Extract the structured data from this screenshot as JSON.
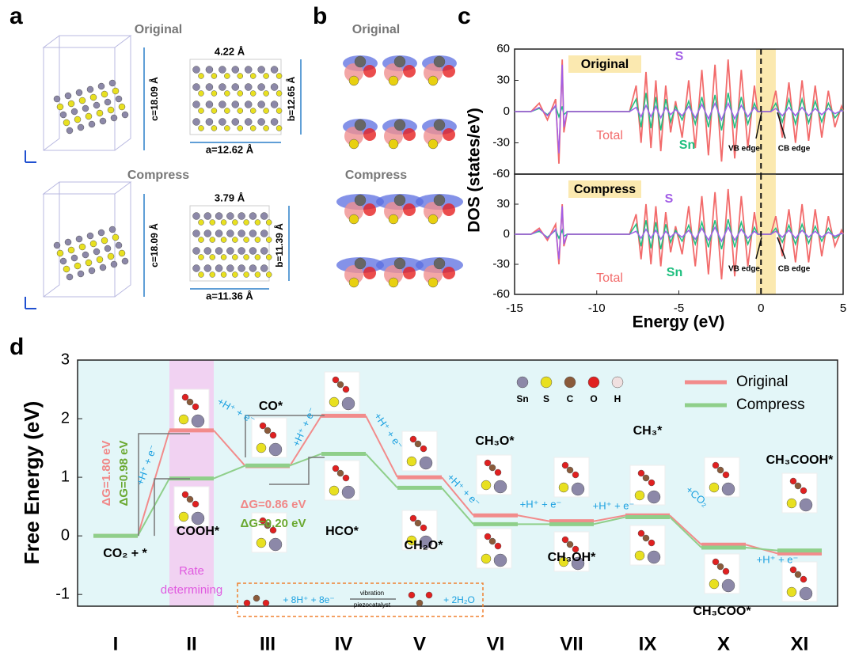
{
  "figure": {
    "labels": [
      "a",
      "b",
      "c",
      "d"
    ],
    "a": {
      "original": "Original",
      "compress": "Compress",
      "original_dims": [
        "c=18.09 Å",
        "4.22 Å",
        "b=12.65 Å",
        "a=12.62 Å"
      ],
      "compress_dims": [
        "c=18.09 Å",
        "3.79 Å",
        "b=11.39 Å",
        "a=11.36 Å"
      ]
    },
    "b": {
      "original": "Original",
      "compress": "Compress"
    }
  },
  "chart_data": [
    {
      "type": "line",
      "title": "Original",
      "ylabel": "DOS (states/eV)",
      "x": [
        -15,
        -14,
        -13.5,
        -13,
        -12.5,
        -12.3,
        -12.1,
        -12,
        -11.8,
        -8,
        -7.6,
        -7.3,
        -7,
        -6.7,
        -6.4,
        -6.1,
        -5.8,
        -5.5,
        -5.2,
        -4.8,
        -4.4,
        -4,
        -3.6,
        -3.2,
        -2.8,
        -2.4,
        -2,
        -1.6,
        -1.2,
        -0.8,
        -0.4,
        -0.2,
        0.6,
        0.9,
        1.3,
        1.7,
        2.1,
        2.5,
        2.9,
        3.3,
        3.7,
        4.1,
        4.5,
        4.9,
        5
      ],
      "series": [
        {
          "name": "Total",
          "color": "#f26b6b",
          "values": [
            0,
            0,
            8,
            -8,
            12,
            -50,
            50,
            -20,
            0,
            0,
            25,
            -30,
            38,
            -35,
            30,
            -38,
            25,
            -20,
            10,
            -25,
            30,
            -35,
            40,
            -42,
            45,
            -48,
            50,
            -45,
            40,
            -35,
            25,
            0,
            0,
            20,
            -25,
            28,
            -30,
            30,
            -28,
            25,
            -25,
            20,
            -15,
            5,
            0
          ]
        },
        {
          "name": "Sn",
          "color": "#1fbf7f",
          "values": [
            0,
            0,
            3,
            -3,
            5,
            -5,
            5,
            -3,
            0,
            0,
            12,
            -15,
            18,
            -16,
            14,
            -18,
            12,
            -10,
            5,
            -8,
            10,
            -12,
            14,
            -15,
            16,
            -18,
            18,
            -16,
            14,
            -12,
            8,
            0,
            0,
            8,
            -10,
            12,
            -12,
            12,
            -11,
            10,
            -10,
            8,
            -6,
            2,
            0
          ]
        },
        {
          "name": "S",
          "color": "#a25ee6",
          "values": [
            0,
            0,
            4,
            -4,
            6,
            -40,
            45,
            -15,
            0,
            0,
            4,
            -5,
            6,
            -5,
            5,
            -6,
            4,
            -3,
            2,
            -4,
            5,
            -6,
            7,
            -7,
            8,
            -8,
            8,
            -7,
            6,
            -5,
            4,
            0,
            0,
            3,
            -4,
            4,
            -4,
            4,
            -4,
            3,
            -3,
            3,
            -2,
            1,
            0
          ]
        }
      ],
      "xlim": [
        -15,
        5
      ],
      "ylim": [
        -60,
        60
      ],
      "yticks": [
        60,
        30,
        0,
        -30,
        -60
      ],
      "highlight": [
        -0.3,
        0.9
      ],
      "vline": 0,
      "annotations": [
        "VB edge",
        "CB edge"
      ]
    },
    {
      "type": "line",
      "title": "Compress",
      "xlabel": "Energy (eV)",
      "x": [
        -15,
        -14,
        -13.5,
        -13,
        -12.5,
        -12.3,
        -12.1,
        -12,
        -11.8,
        -8,
        -7.6,
        -7.3,
        -7,
        -6.7,
        -6.4,
        -6.1,
        -5.8,
        -5.5,
        -5.2,
        -4.8,
        -4.4,
        -4,
        -3.6,
        -3.2,
        -2.8,
        -2.4,
        -2,
        -1.6,
        -1.2,
        -0.8,
        -0.4,
        -0.2,
        0.6,
        0.9,
        1.3,
        1.7,
        2.1,
        2.5,
        2.9,
        3.3,
        3.7,
        4.1,
        4.5,
        4.9,
        5
      ],
      "series": [
        {
          "name": "Total",
          "color": "#f26b6b",
          "values": [
            0,
            0,
            6,
            -6,
            10,
            -30,
            30,
            -12,
            0,
            0,
            20,
            -25,
            30,
            -30,
            28,
            -32,
            22,
            -18,
            8,
            -20,
            28,
            -32,
            38,
            -40,
            42,
            -45,
            45,
            -42,
            38,
            -32,
            22,
            0,
            0,
            18,
            -22,
            25,
            -28,
            30,
            -28,
            25,
            -22,
            18,
            -12,
            4,
            0
          ]
        },
        {
          "name": "Sn",
          "color": "#1fbf7f",
          "values": [
            0,
            0,
            3,
            -3,
            4,
            -4,
            4,
            -2,
            0,
            0,
            10,
            -12,
            14,
            -14,
            12,
            -15,
            10,
            -8,
            4,
            -7,
            9,
            -10,
            12,
            -13,
            14,
            -15,
            15,
            -13,
            12,
            -10,
            7,
            0,
            0,
            6,
            -8,
            9,
            -10,
            10,
            -9,
            8,
            -7,
            6,
            -4,
            1,
            0
          ]
        },
        {
          "name": "S",
          "color": "#a25ee6",
          "values": [
            0,
            0,
            4,
            -4,
            5,
            -25,
            28,
            -10,
            0,
            0,
            3,
            -4,
            5,
            -4,
            4,
            -5,
            3,
            -3,
            2,
            -3,
            4,
            -5,
            6,
            -6,
            7,
            -7,
            7,
            -6,
            5,
            -4,
            3,
            0,
            0,
            3,
            -3,
            4,
            -4,
            4,
            -3,
            3,
            -3,
            2,
            -2,
            1,
            0
          ]
        }
      ],
      "xlim": [
        -15,
        5
      ],
      "xticks": [
        -15,
        -10,
        -5,
        0,
        5
      ],
      "ylim": [
        -60,
        60
      ],
      "yticks": [
        30,
        0,
        -30,
        -60
      ],
      "highlight": [
        -0.3,
        0.9
      ],
      "vline": 0,
      "annotations": [
        "VB edge",
        "CB edge"
      ]
    },
    {
      "type": "step",
      "ylabel": "Free Energy (eV)",
      "categories": [
        "I",
        "II",
        "III",
        "IV",
        "V",
        "VI",
        "VII",
        "IX",
        "X",
        "XI"
      ],
      "series": [
        {
          "name": "Original",
          "color": "#f28b8b",
          "values": [
            0,
            1.8,
            1.19,
            2.05,
            1.0,
            0.35,
            0.25,
            0.35,
            -0.15,
            -0.3
          ]
        },
        {
          "name": "Compress",
          "color": "#8fcf8a",
          "values": [
            0,
            0.98,
            1.2,
            1.4,
            0.82,
            0.2,
            0.2,
            0.32,
            -0.2,
            -0.25
          ]
        }
      ],
      "ylim": [
        -1.2,
        3
      ],
      "yticks": [
        -1,
        0,
        1,
        2,
        3
      ],
      "species": [
        "CO₂ + *",
        "COOH*",
        "CO*",
        "HCO*",
        "CH₂O*",
        "CH₃O*",
        "CH₃OH*",
        "CH₃*",
        "CH₃COO*",
        "CH₃COOH*"
      ],
      "delta_g": [
        "ΔG=1.80 eV",
        "ΔG=0.98 eV",
        "ΔG=0.86 eV",
        "ΔG=0.20 eV"
      ],
      "steps": [
        "+H⁺ + e⁻",
        "+H⁺ + e⁻",
        "+H⁺ + e⁻",
        "+H⁺ + e⁻",
        "+H⁺ + e⁻",
        "+H⁺ + e⁻",
        "+H⁺ + e⁻",
        "+CO₂",
        "+H⁺ + e⁻"
      ],
      "rate": [
        "Rate",
        "determining"
      ],
      "reaction": [
        "+ 8H⁺ + 8e⁻",
        "vibration",
        "piezocatalyst",
        "+ 2H₂O"
      ],
      "atoms": [
        {
          "name": "Sn",
          "color": "#8c88a8"
        },
        {
          "name": "S",
          "color": "#e8e020"
        },
        {
          "name": "C",
          "color": "#8a5a3a"
        },
        {
          "name": "O",
          "color": "#e02020"
        },
        {
          "name": "H",
          "color": "#f0e0e0"
        }
      ]
    }
  ]
}
